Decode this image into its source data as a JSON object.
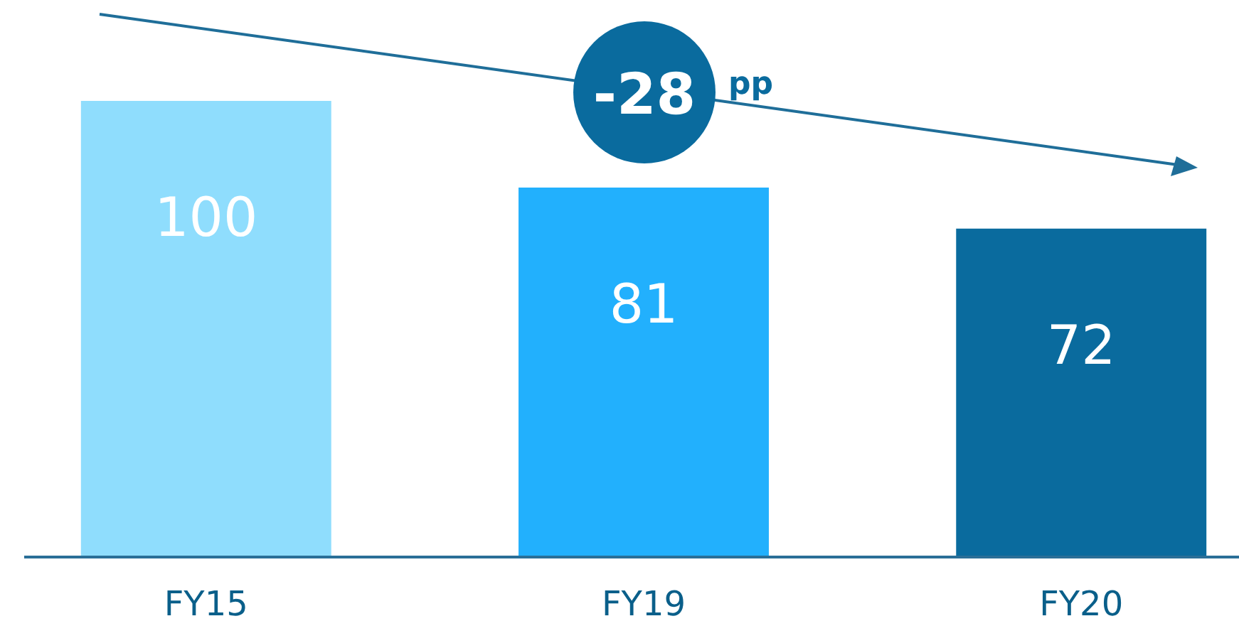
{
  "chart_data": {
    "type": "bar",
    "categories": [
      "FY15",
      "FY19",
      "FY20"
    ],
    "values": [
      100,
      81,
      72
    ],
    "colors": [
      "#8fddfd",
      "#22b0fd",
      "#0a6b9e"
    ],
    "data_labels": true,
    "annotations": [
      "-28",
      "pp"
    ]
  }
}
